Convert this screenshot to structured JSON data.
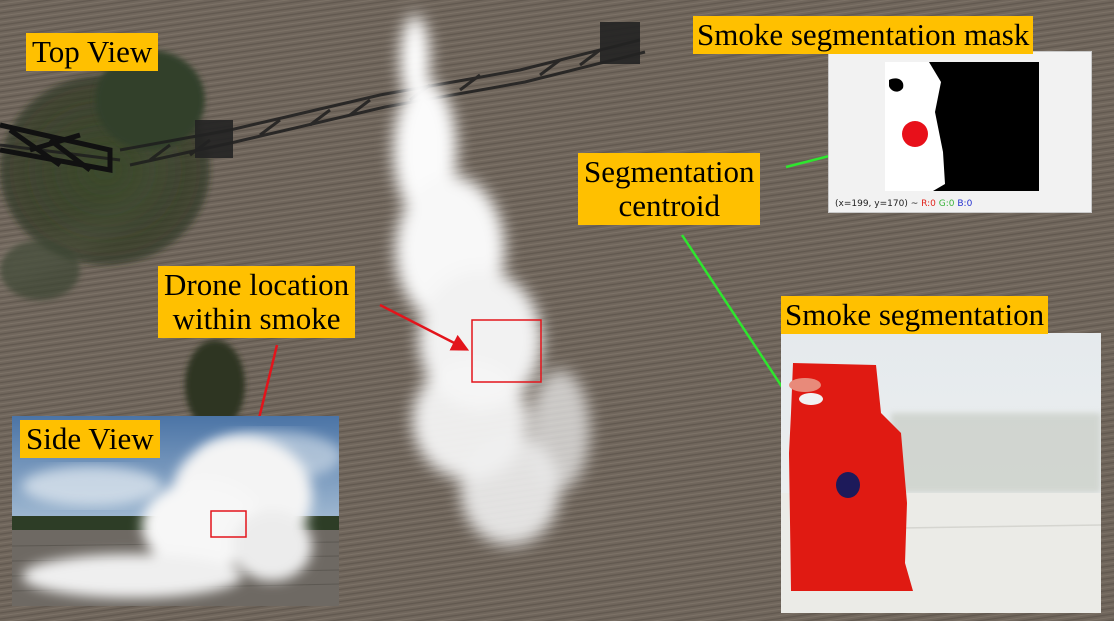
{
  "labels": {
    "top_view": "Top View",
    "side_view": "Side View",
    "mask_title": "Smoke segmentation mask",
    "seg_title": "Smoke segmentation",
    "centroid_line1": "Segmentation",
    "centroid_line2": "centroid",
    "drone_line1": "Drone location",
    "drone_line2": "within smoke"
  },
  "mask_readout": {
    "coords": "(x=199, y=170) ~",
    "r": "R:0",
    "g": "G:0",
    "b": "B:0"
  },
  "colors": {
    "label_bg": "#ffc000",
    "arrow_red": "#e3141b",
    "arrow_green": "#2ee52e",
    "segmentation_red": "#e01a12",
    "centroid_dark_blue": "#1d1a5a",
    "mask_centroid_red": "#e8101a"
  },
  "icons": {
    "red_arrow": "arrow-right",
    "green_arrow": "arrow-right"
  }
}
